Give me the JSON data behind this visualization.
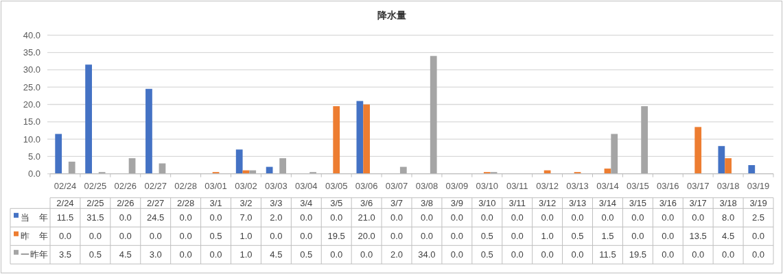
{
  "chart_data": {
    "type": "bar",
    "title": "降水量",
    "categories": [
      "02/24",
      "02/25",
      "02/26",
      "02/27",
      "02/28",
      "03/01",
      "03/02",
      "03/03",
      "03/04",
      "03/05",
      "03/06",
      "03/07",
      "03/08",
      "03/09",
      "03/10",
      "03/11",
      "03/12",
      "03/13",
      "03/14",
      "03/15",
      "03/16",
      "03/17",
      "03/18",
      "03/19"
    ],
    "series": [
      {
        "name": "当　年",
        "color": "#4472c4",
        "values": [
          11.5,
          31.5,
          0.0,
          24.5,
          0.0,
          0.0,
          7.0,
          2.0,
          0.0,
          0.0,
          21.0,
          0.0,
          0.0,
          0.0,
          0.0,
          0.0,
          0.0,
          0.0,
          0.0,
          0.0,
          0.0,
          0.0,
          8.0,
          2.5
        ],
        "value_labels": [
          "11.5",
          "31.5",
          "0.0",
          "24.5",
          "0.0",
          "0.0",
          "7.0",
          "2.0",
          "0.0",
          "0.0",
          "21.0",
          "0.0",
          "0.0",
          "0.0",
          "0.0",
          "0.0",
          "0.0",
          "0.0",
          "0.0",
          "0.0",
          "0.0",
          "0.0",
          "8.0",
          "2.5"
        ]
      },
      {
        "name": "昨　年",
        "color": "#ed7d31",
        "values": [
          0.0,
          0.0,
          0.0,
          0.0,
          0.0,
          0.5,
          1.0,
          0.0,
          0.0,
          19.5,
          20.0,
          0.0,
          0.0,
          0.0,
          0.5,
          0.0,
          1.0,
          0.5,
          1.5,
          0.0,
          0.0,
          13.5,
          4.5,
          0.0
        ],
        "value_labels": [
          "0.0",
          "0.0",
          "0.0",
          "0.0",
          "0.0",
          "0.5",
          "1.0",
          "0.0",
          "0.0",
          "19.5",
          "20.0",
          "0.0",
          "0.0",
          "0.0",
          "0.5",
          "0.0",
          "1.0",
          "0.5",
          "1.5",
          "0.0",
          "0.0",
          "13.5",
          "4.5",
          "0.0"
        ]
      },
      {
        "name": "一昨年",
        "color": "#a5a5a5",
        "values": [
          3.5,
          0.5,
          4.5,
          3.0,
          0.0,
          0.0,
          1.0,
          4.5,
          0.5,
          0.0,
          0.0,
          2.0,
          34.0,
          0.0,
          0.5,
          0.0,
          0.0,
          0.0,
          11.5,
          19.5,
          0.0,
          0.0,
          0.0,
          0.0
        ],
        "value_labels": [
          "3.5",
          "0.5",
          "4.5",
          "3.0",
          "0.0",
          "0.0",
          "1.0",
          "4.5",
          "0.5",
          "0.0",
          "0.0",
          "2.0",
          "34.0",
          "0.0",
          "0.5",
          "0.0",
          "0.0",
          "0.0",
          "11.5",
          "19.5",
          "0.0",
          "0.0",
          "0.0",
          "0.0"
        ]
      }
    ],
    "ylim": [
      0,
      40
    ],
    "yticks": [
      {
        "value": 0,
        "label": "0.0"
      },
      {
        "value": 5,
        "label": "5.0"
      },
      {
        "value": 10,
        "label": "10.0"
      },
      {
        "value": 15,
        "label": "15.0"
      },
      {
        "value": 20,
        "label": "20.0"
      },
      {
        "value": 25,
        "label": "25.0"
      },
      {
        "value": 30,
        "label": "30.0"
      },
      {
        "value": 35,
        "label": "35.0"
      },
      {
        "value": 40,
        "label": "40.0"
      }
    ],
    "grid": "y",
    "legend": "bottom",
    "annotations": [
      "2/24",
      "2/25",
      "2/26",
      "2/27",
      "2/28",
      "3/1",
      "3/2",
      "3/3",
      "3/4",
      "3/5",
      "3/6",
      "3/7",
      "3/8",
      "3/9",
      "3/10",
      "3/11",
      "3/12",
      "3/13",
      "3/14",
      "3/15",
      "3/16",
      "3/17",
      "3/18",
      "3/19"
    ]
  }
}
